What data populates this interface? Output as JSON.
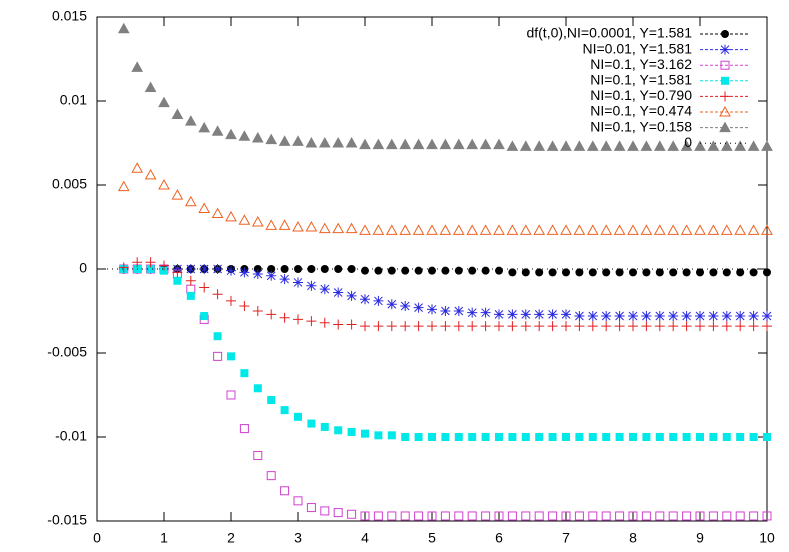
{
  "chart_data": {
    "type": "scatter",
    "x": [
      0.4,
      0.6,
      0.8,
      1.0,
      1.2,
      1.4,
      1.6,
      1.8,
      2.0,
      2.2,
      2.4,
      2.6,
      2.8,
      3.0,
      3.2,
      3.4,
      3.6,
      3.8,
      4.0,
      4.2,
      4.4,
      4.6,
      4.8,
      5.0,
      5.2,
      5.4,
      5.6,
      5.8,
      6.0,
      6.2,
      6.4,
      6.6,
      6.8,
      7.0,
      7.2,
      7.4,
      7.6,
      7.8,
      8.0,
      8.2,
      8.4,
      8.6,
      8.8,
      9.0,
      9.2,
      9.4,
      9.6,
      9.8,
      10.0
    ],
    "xlim": [
      0,
      10
    ],
    "xticks": [
      0,
      1,
      2,
      3,
      4,
      5,
      6,
      7,
      8,
      9,
      10
    ],
    "ylim": [
      -0.015,
      0.015
    ],
    "yticks": [
      -0.015,
      -0.01,
      -0.005,
      0,
      0.005,
      0.01,
      0.015
    ],
    "legend": "top-right",
    "series": [
      {
        "name": "df(t,0),NI=0.0001, Y=1.581",
        "color": "#000000",
        "marker": "circle",
        "values": [
          0,
          0,
          0,
          0,
          0,
          0,
          0,
          0,
          0,
          0,
          0,
          0,
          0,
          0,
          0,
          0,
          0,
          0,
          -0.0001,
          -0.0001,
          -0.0001,
          -0.0001,
          -0.0001,
          -0.0001,
          -0.0001,
          -0.0001,
          -0.0001,
          -0.0001,
          -0.0001,
          -0.0002,
          -0.0002,
          -0.0002,
          -0.0002,
          -0.0002,
          -0.0002,
          -0.0002,
          -0.0002,
          -0.0002,
          -0.0002,
          -0.0002,
          -0.0002,
          -0.0002,
          -0.0002,
          -0.0002,
          -0.0002,
          -0.0002,
          -0.0002,
          -0.0002,
          -0.0002
        ]
      },
      {
        "name": "NI=0.01, Y=1.581",
        "color": "#2a2ae0",
        "marker": "star",
        "values": [
          0,
          0,
          0,
          0,
          0,
          0,
          0,
          0,
          -0.0001,
          -0.0002,
          -0.0003,
          -0.0004,
          -0.0006,
          -0.0008,
          -0.001,
          -0.0012,
          -0.0014,
          -0.0016,
          -0.0018,
          -0.0019,
          -0.0021,
          -0.0022,
          -0.0023,
          -0.0024,
          -0.0025,
          -0.0025,
          -0.0026,
          -0.0026,
          -0.0027,
          -0.0027,
          -0.0027,
          -0.0027,
          -0.0027,
          -0.0027,
          -0.0028,
          -0.0028,
          -0.0028,
          -0.0028,
          -0.0028,
          -0.0028,
          -0.0028,
          -0.0028,
          -0.0028,
          -0.0028,
          -0.0028,
          -0.0028,
          -0.0028,
          -0.0028,
          -0.0028
        ]
      },
      {
        "name": "NI=0.1, Y=3.162",
        "color": "#d040d0",
        "marker": "square-open",
        "values": [
          0,
          0,
          0,
          0,
          -0.0003,
          -0.0012,
          -0.003,
          -0.0052,
          -0.0075,
          -0.0095,
          -0.0111,
          -0.0123,
          -0.0132,
          -0.0138,
          -0.0142,
          -0.0144,
          -0.0145,
          -0.0146,
          -0.0147,
          -0.0147,
          -0.0147,
          -0.0147,
          -0.0147,
          -0.0147,
          -0.0147,
          -0.0147,
          -0.0147,
          -0.0147,
          -0.0147,
          -0.0147,
          -0.0147,
          -0.0147,
          -0.0147,
          -0.0147,
          -0.0147,
          -0.0147,
          -0.0147,
          -0.0147,
          -0.0147,
          -0.0147,
          -0.0147,
          -0.0147,
          -0.0147,
          -0.0147,
          -0.0147,
          -0.0147,
          -0.0147,
          -0.0147,
          -0.0147
        ]
      },
      {
        "name": "NI=0.1, Y=1.581",
        "color": "#00e8e8",
        "marker": "square",
        "values": [
          0,
          0,
          0,
          -0.0001,
          -0.0007,
          -0.0016,
          -0.0028,
          -0.004,
          -0.0052,
          -0.0062,
          -0.0071,
          -0.0078,
          -0.0084,
          -0.0088,
          -0.0092,
          -0.0094,
          -0.0096,
          -0.0097,
          -0.0098,
          -0.0099,
          -0.0099,
          -0.01,
          -0.01,
          -0.01,
          -0.01,
          -0.01,
          -0.01,
          -0.01,
          -0.01,
          -0.01,
          -0.01,
          -0.01,
          -0.01,
          -0.01,
          -0.01,
          -0.01,
          -0.01,
          -0.01,
          -0.01,
          -0.01,
          -0.01,
          -0.01,
          -0.01,
          -0.01,
          -0.01,
          -0.01,
          -0.01,
          -0.01,
          -0.01
        ]
      },
      {
        "name": "NI=0.1, Y=0.790",
        "color": "#e02020",
        "marker": "plus",
        "values": [
          0.0001,
          0.0004,
          0.0004,
          0.0002,
          -0.0002,
          -0.0007,
          -0.0011,
          -0.0015,
          -0.0019,
          -0.0022,
          -0.0025,
          -0.0027,
          -0.0029,
          -0.003,
          -0.0031,
          -0.0032,
          -0.0033,
          -0.0033,
          -0.0034,
          -0.0034,
          -0.0034,
          -0.0034,
          -0.0034,
          -0.0034,
          -0.0034,
          -0.0034,
          -0.0034,
          -0.0034,
          -0.0034,
          -0.0034,
          -0.0034,
          -0.0034,
          -0.0034,
          -0.0034,
          -0.0034,
          -0.0034,
          -0.0034,
          -0.0034,
          -0.0034,
          -0.0034,
          -0.0034,
          -0.0034,
          -0.0034,
          -0.0034,
          -0.0034,
          -0.0034,
          -0.0034,
          -0.0034,
          -0.0034
        ]
      },
      {
        "name": "NI=0.1, Y=0.474",
        "color": "#f06020",
        "marker": "triangle-open",
        "values": [
          0.0049,
          0.006,
          0.0056,
          0.005,
          0.0044,
          0.004,
          0.0036,
          0.0033,
          0.0031,
          0.0029,
          0.0028,
          0.0026,
          0.0026,
          0.0025,
          0.0025,
          0.0024,
          0.0024,
          0.0024,
          0.0023,
          0.0023,
          0.0023,
          0.0023,
          0.0023,
          0.0023,
          0.0023,
          0.0023,
          0.0023,
          0.0023,
          0.0023,
          0.0023,
          0.0023,
          0.0023,
          0.0023,
          0.0023,
          0.0023,
          0.0023,
          0.0023,
          0.0023,
          0.0023,
          0.0023,
          0.0023,
          0.0023,
          0.0023,
          0.0023,
          0.0023,
          0.0023,
          0.0023,
          0.0023,
          0.0023
        ]
      },
      {
        "name": "NI=0.1, Y=0.158",
        "color": "#808080",
        "marker": "triangle",
        "values": [
          0.0143,
          0.012,
          0.0108,
          0.0099,
          0.0092,
          0.0088,
          0.0084,
          0.0082,
          0.008,
          0.0079,
          0.0078,
          0.0077,
          0.0076,
          0.0076,
          0.0075,
          0.0075,
          0.0075,
          0.0075,
          0.0074,
          0.0074,
          0.0074,
          0.0074,
          0.0074,
          0.0074,
          0.0074,
          0.0074,
          0.0074,
          0.0074,
          0.0074,
          0.0073,
          0.0073,
          0.0073,
          0.0073,
          0.0073,
          0.0073,
          0.0073,
          0.0073,
          0.0073,
          0.0073,
          0.0073,
          0.0073,
          0.0073,
          0.0073,
          0.0073,
          0.0073,
          0.0073,
          0.0073,
          0.0073,
          0.0073
        ]
      },
      {
        "name": "0",
        "color": "#000000",
        "marker": "line",
        "x": [
          0,
          10
        ],
        "values": [
          0,
          0
        ]
      }
    ]
  }
}
